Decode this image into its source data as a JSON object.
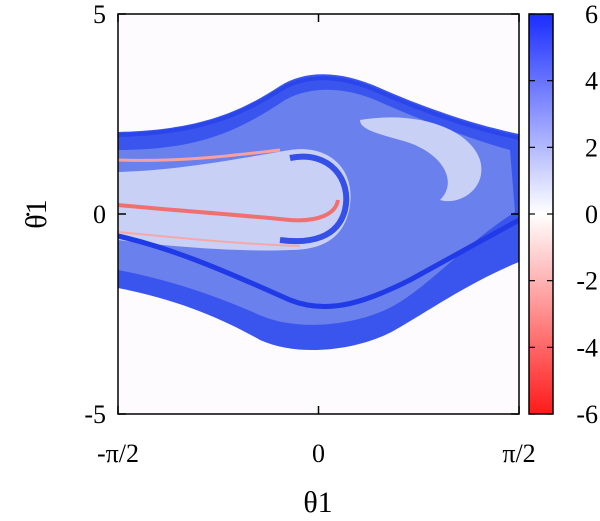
{
  "chart_data": {
    "type": "heatmap",
    "title": "",
    "xlabel": "θ1",
    "ylabel": "θ̇1",
    "x_ticks": [
      "-π/2",
      "0",
      "π/2"
    ],
    "x_tick_values": [
      -1.5708,
      0,
      1.5708
    ],
    "xlim": [
      -1.5708,
      1.5708
    ],
    "y_ticks": [
      "5",
      "0",
      "-5"
    ],
    "y_tick_values": [
      5,
      0,
      -5
    ],
    "ylim": [
      -5,
      5
    ],
    "colorbar": {
      "ticks": [
        "6",
        "4",
        "2",
        "0",
        "-2",
        "-4",
        "-6"
      ],
      "tick_values": [
        6,
        4,
        2,
        0,
        -2,
        -4,
        -6
      ],
      "range": [
        -6,
        6
      ],
      "colors": {
        "max": "#1a2dff",
        "mid": "#ffffff",
        "min": "#ff1a1a"
      }
    },
    "regions": [
      {
        "name": "outer-band",
        "value": 3.5
      },
      {
        "name": "mid-band",
        "value": 2.6
      },
      {
        "name": "inner-light",
        "value": 1.2
      },
      {
        "name": "negative-streak",
        "value": -1.5
      },
      {
        "name": "background",
        "value": 0.1
      }
    ]
  }
}
